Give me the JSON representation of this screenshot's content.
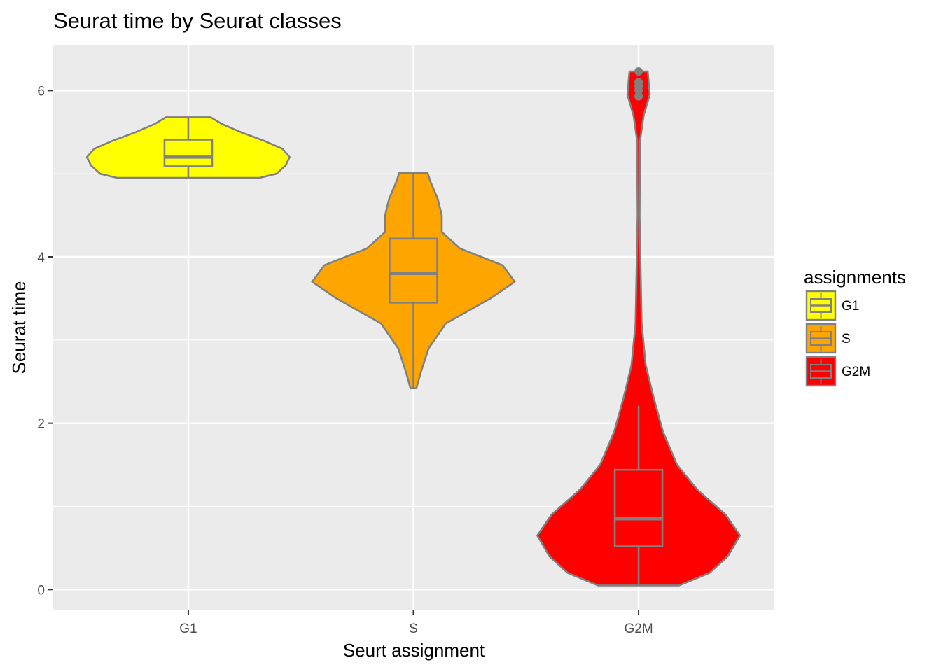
{
  "chart_data": {
    "type": "violin",
    "title": "Seurat time by Seurat classes",
    "xlabel": "Seurt assignment",
    "ylabel": "Seurat time",
    "ylim": [
      -0.25,
      6.55
    ],
    "yticks": [
      0,
      2,
      4,
      6
    ],
    "categories": [
      "G1",
      "S",
      "G2M"
    ],
    "grid": true,
    "panel_background": "#ebebeb",
    "outline_color": "#808080",
    "legend": {
      "title": "assignments",
      "placement": "right",
      "entries": [
        {
          "label": "G1",
          "color": "#ffff00"
        },
        {
          "label": "S",
          "color": "#ffa500"
        },
        {
          "label": "G2M",
          "color": "#ff0000"
        }
      ]
    },
    "series": [
      {
        "category": "G1",
        "color": "#ffff00",
        "violin_range": [
          4.95,
          5.68
        ],
        "density_profile": [
          [
            4.95,
            0.7
          ],
          [
            5.0,
            0.87
          ],
          [
            5.1,
            0.96
          ],
          [
            5.2,
            1.0
          ],
          [
            5.3,
            0.93
          ],
          [
            5.4,
            0.74
          ],
          [
            5.5,
            0.52
          ],
          [
            5.6,
            0.33
          ],
          [
            5.68,
            0.22
          ]
        ],
        "box": {
          "q1": 5.09,
          "median": 5.2,
          "q3": 5.41,
          "whisker_low": 4.95,
          "whisker_high": 5.68
        },
        "outliers": []
      },
      {
        "category": "S",
        "color": "#ffa500",
        "violin_range": [
          2.42,
          5.01
        ],
        "density_profile": [
          [
            2.42,
            0.03
          ],
          [
            2.6,
            0.07
          ],
          [
            2.9,
            0.15
          ],
          [
            3.2,
            0.32
          ],
          [
            3.5,
            0.76
          ],
          [
            3.7,
            1.0
          ],
          [
            3.9,
            0.88
          ],
          [
            4.1,
            0.46
          ],
          [
            4.3,
            0.28
          ],
          [
            4.5,
            0.28
          ],
          [
            4.7,
            0.24
          ],
          [
            4.9,
            0.17
          ],
          [
            5.01,
            0.14
          ]
        ],
        "box": {
          "q1": 3.45,
          "median": 3.8,
          "q3": 4.22,
          "whisker_low": 2.42,
          "whisker_high": 5.01
        },
        "outliers": []
      },
      {
        "category": "G2M",
        "color": "#ff0000",
        "violin_range": [
          0.05,
          6.23
        ],
        "density_profile": [
          [
            0.05,
            0.4
          ],
          [
            0.2,
            0.7
          ],
          [
            0.4,
            0.88
          ],
          [
            0.65,
            1.0
          ],
          [
            0.9,
            0.86
          ],
          [
            1.2,
            0.58
          ],
          [
            1.5,
            0.38
          ],
          [
            1.9,
            0.24
          ],
          [
            2.3,
            0.15
          ],
          [
            2.7,
            0.07
          ],
          [
            3.2,
            0.03
          ],
          [
            4.5,
            0.01
          ],
          [
            5.4,
            0.015
          ],
          [
            5.7,
            0.05
          ],
          [
            5.95,
            0.11
          ],
          [
            6.1,
            0.1
          ],
          [
            6.23,
            0.09
          ]
        ],
        "box": {
          "q1": 0.52,
          "median": 0.85,
          "q3": 1.44,
          "whisker_low": 0.05,
          "whisker_high": 2.21
        },
        "outliers": [
          6.23,
          6.1,
          6.05,
          6.0,
          5.93
        ]
      }
    ]
  }
}
